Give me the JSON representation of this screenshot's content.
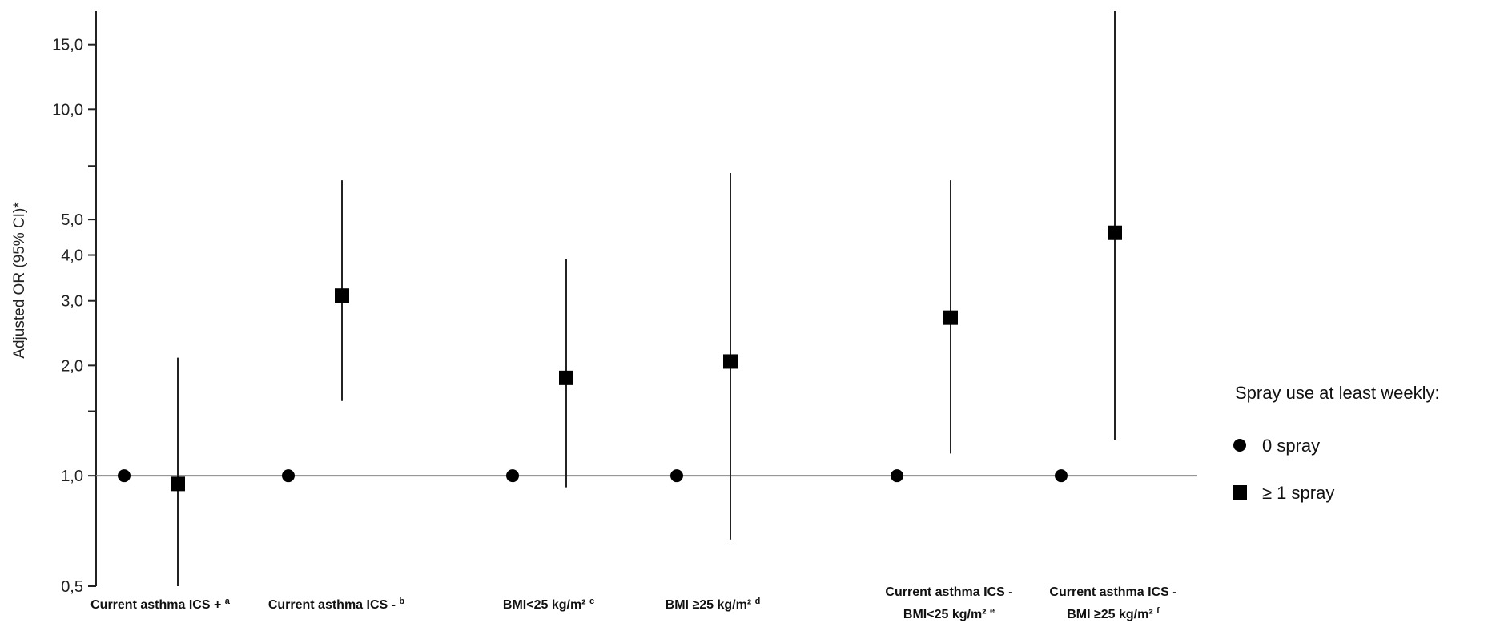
{
  "chart_data": {
    "type": "scatter",
    "ylabel": "Adjusted OR (95% CI)*",
    "yscale": "log",
    "ylim": [
      0.5,
      18.5
    ],
    "yticks": [
      {
        "value": 0.5,
        "label": "0,5"
      },
      {
        "value": 1.0,
        "label": "1,0"
      },
      {
        "value": 2.0,
        "label": "2,0"
      },
      {
        "value": 3.0,
        "label": "3,0"
      },
      {
        "value": 4.0,
        "label": "4,0"
      },
      {
        "value": 5.0,
        "label": "5,0"
      },
      {
        "value": 10.0,
        "label": "10,0"
      },
      {
        "value": 15.0,
        "label": "15,0"
      }
    ],
    "minor_ticks": [
      1.5,
      7.0
    ],
    "reference_line": 1.0,
    "categories": [
      {
        "line1": "Current asthma  ICS + ",
        "line1_sup": "a",
        "line2": "",
        "line2_sup": ""
      },
      {
        "line1": "Current asthma  ICS - ",
        "line1_sup": "b",
        "line2": "",
        "line2_sup": ""
      },
      {
        "line1": "BMI<25 kg/m² ",
        "line1_sup": "c",
        "line2": "",
        "line2_sup": ""
      },
      {
        "line1": "BMI ≥25 kg/m² ",
        "line1_sup": "d",
        "line2": "",
        "line2_sup": ""
      },
      {
        "line1": "Current asthma  ICS -",
        "line1_sup": "",
        "line2": "BMI<25 kg/m² ",
        "line2_sup": "e"
      },
      {
        "line1": "Current asthma  ICS -",
        "line1_sup": "",
        "line2": "BMI ≥25 kg/m² ",
        "line2_sup": "f"
      }
    ],
    "series": [
      {
        "name": "0 spray",
        "marker": "circle",
        "values": [
          1.0,
          1.0,
          1.0,
          1.0,
          1.0,
          1.0
        ]
      },
      {
        "name": "≥ 1 spray",
        "marker": "square",
        "values": [
          0.95,
          3.1,
          1.85,
          2.05,
          2.7,
          4.6
        ],
        "ci_low": [
          0.5,
          1.6,
          0.93,
          0.67,
          1.15,
          1.25
        ],
        "ci_high": [
          2.1,
          6.4,
          3.9,
          6.7,
          6.4,
          18.5
        ]
      }
    ],
    "legend": {
      "title": "Spray use at least weekly:",
      "position": "right",
      "entries": [
        "0 spray",
        "≥ 1 spray"
      ]
    },
    "colors": {
      "marker": "#000000",
      "line": "#222222",
      "reference": "#888888"
    },
    "grid": false
  }
}
